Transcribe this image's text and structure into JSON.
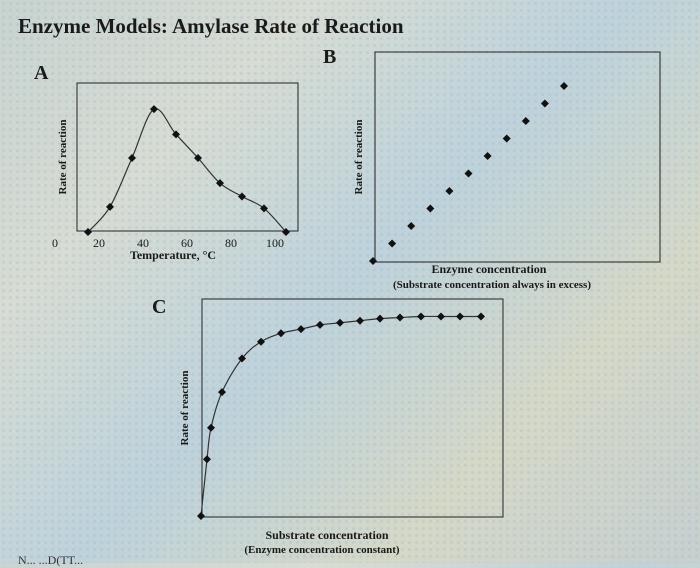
{
  "page": {
    "title": "Enzyme Models:  Amylase Rate of Reaction",
    "panel_labels": {
      "a": "A",
      "b": "B",
      "c": "C"
    },
    "footer_cut_text": "N...  ...D(TT..."
  },
  "chart_data": [
    {
      "id": "A",
      "type": "line",
      "title": "A",
      "xlabel": "Temperature, °C",
      "ylabel": "Rate of reaction",
      "xticks": [
        0,
        20,
        40,
        60,
        80,
        100
      ],
      "xlim": [
        0,
        110
      ],
      "ylim": [
        0,
        10
      ],
      "grid": false,
      "x": [
        15,
        25,
        35,
        45,
        55,
        65,
        75,
        85,
        95,
        105
      ],
      "values": [
        0,
        1.7,
        5.0,
        8.3,
        6.6,
        5.0,
        3.3,
        2.4,
        1.6,
        0
      ]
    },
    {
      "id": "B",
      "type": "scatter",
      "title": "B",
      "xlabel": "Enzyme concentration",
      "xlabel_note": "(Substrate concentration always in excess)",
      "ylabel": "Rate of reaction",
      "grid": false,
      "x": [
        0,
        1,
        2,
        3,
        4,
        5,
        6,
        7,
        8,
        9,
        10
      ],
      "values": [
        0,
        1,
        2,
        3,
        4,
        5,
        6,
        7,
        8,
        9,
        10
      ]
    },
    {
      "id": "C",
      "type": "line",
      "title": "C",
      "xlabel": "Substrate concentration",
      "xlabel_note": "(Enzyme concentration constant)",
      "ylabel": "Rate of reaction",
      "grid": false,
      "x": [
        0,
        0.3,
        0.5,
        1,
        2,
        3,
        4,
        5,
        6,
        7,
        8,
        9,
        10,
        11,
        12,
        13,
        14
      ],
      "values": [
        0,
        2.7,
        4.2,
        5.9,
        7.5,
        8.3,
        8.7,
        8.9,
        9.1,
        9.2,
        9.3,
        9.4,
        9.45,
        9.5,
        9.5,
        9.5,
        9.5
      ]
    }
  ]
}
